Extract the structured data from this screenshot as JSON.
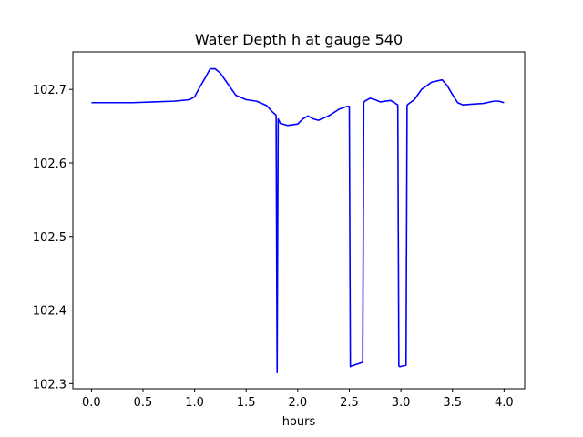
{
  "chart_data": {
    "type": "line",
    "title": "Water Depth h at gauge 540",
    "xlabel": "hours",
    "ylabel": "",
    "xlim": [
      -0.18,
      4.2
    ],
    "ylim": [
      102.293,
      102.751
    ],
    "x_ticks": [
      0.0,
      0.5,
      1.0,
      1.5,
      2.0,
      2.5,
      3.0,
      3.5,
      4.0
    ],
    "x_tick_labels": [
      "0.0",
      "0.5",
      "1.0",
      "1.5",
      "2.0",
      "2.5",
      "3.0",
      "3.5",
      "4.0"
    ],
    "y_ticks": [
      102.3,
      102.4,
      102.5,
      102.6,
      102.7
    ],
    "y_tick_labels": [
      "102.3",
      "102.4",
      "102.5",
      "102.6",
      "102.7"
    ],
    "grid": false,
    "legend": "none",
    "series": [
      {
        "color": "#0000ff",
        "x": [
          0.0,
          0.2,
          0.4,
          0.6,
          0.8,
          0.95,
          1.0,
          1.05,
          1.1,
          1.15,
          1.2,
          1.25,
          1.3,
          1.4,
          1.5,
          1.6,
          1.7,
          1.75,
          1.79,
          1.8,
          1.81,
          1.83,
          1.9,
          2.0,
          2.05,
          2.1,
          2.15,
          2.2,
          2.3,
          2.4,
          2.48,
          2.5,
          2.51,
          2.52,
          2.63,
          2.64,
          2.65,
          2.7,
          2.75,
          2.8,
          2.9,
          2.97,
          2.98,
          2.99,
          3.05,
          3.06,
          3.07,
          3.13,
          3.2,
          3.3,
          3.4,
          3.45,
          3.5,
          3.55,
          3.6,
          3.7,
          3.8,
          3.9,
          3.95,
          4.0
        ],
        "y": [
          102.682,
          102.682,
          102.682,
          102.683,
          102.684,
          102.686,
          102.69,
          102.703,
          102.715,
          102.728,
          102.728,
          102.722,
          102.712,
          102.692,
          102.686,
          102.684,
          102.678,
          102.67,
          102.665,
          102.315,
          102.66,
          102.654,
          102.651,
          102.653,
          102.66,
          102.664,
          102.66,
          102.658,
          102.664,
          102.673,
          102.677,
          102.677,
          102.323,
          102.324,
          102.329,
          102.682,
          102.684,
          102.688,
          102.686,
          102.683,
          102.685,
          102.679,
          102.324,
          102.323,
          102.325,
          102.678,
          102.68,
          102.686,
          102.7,
          102.71,
          102.713,
          102.705,
          102.693,
          102.682,
          102.679,
          102.68,
          102.681,
          102.684,
          102.684,
          102.682
        ]
      }
    ]
  }
}
